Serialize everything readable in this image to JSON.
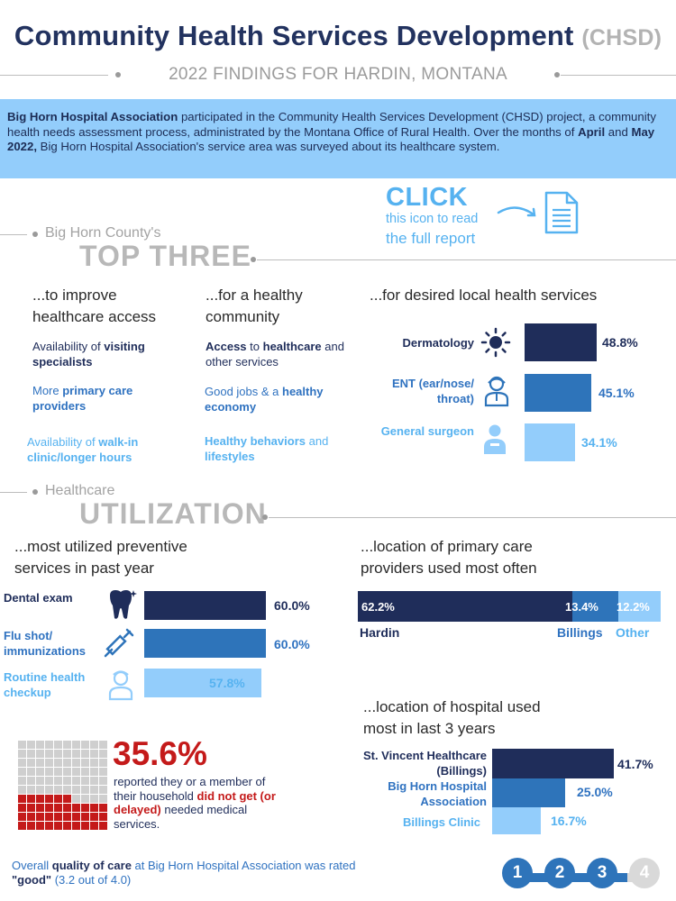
{
  "header": {
    "title": "Community Health Services Development",
    "title_abbr": "(CHSD)",
    "subtitle": "2022 FINDINGS FOR HARDIN, MONTANA"
  },
  "intro": {
    "org": "Big Horn Hospital Association",
    "text_1": " participated in the Community Health Services Development (CHSD) project, a community health needs assessment process, administrated by the Montana Office of Rural Health. Over the months of ",
    "month_1": "April",
    "text_2": " and ",
    "month_2": "May 2022,",
    "text_3": " Big Horn Hospital Association's service area was surveyed about its healthcare system."
  },
  "click": {
    "title": "CLICK",
    "line_1": "this icon to read",
    "line_2": "the full report",
    "icon": "document-icon"
  },
  "top_three": {
    "kicker": "Big Horn County's",
    "heading": "TOP THREE",
    "access": {
      "heading_1": "...to improve",
      "heading_2": "healthcare access",
      "items": [
        {
          "pre": "Availability of ",
          "bold": "visiting specialists",
          "post": ""
        },
        {
          "pre": "More ",
          "bold": "primary care providers",
          "post": ""
        },
        {
          "pre": "Availability of ",
          "bold": "walk-in clinic/longer hours",
          "post": ""
        }
      ]
    },
    "community": {
      "heading_1": "...for a healthy",
      "heading_2": "community",
      "items": [
        {
          "pre": "",
          "bold1": "Access",
          "mid": " to ",
          "bold2": "healthcare",
          "post": " and other services"
        },
        {
          "pre": "Good jobs & a ",
          "bold1": "healthy economy",
          "mid": "",
          "bold2": "",
          "post": ""
        },
        {
          "pre": "",
          "bold1": "Healthy behaviors",
          "mid": " and ",
          "bold2": "lifestyles",
          "post": ""
        }
      ]
    },
    "services": {
      "heading": "...for desired local health services",
      "bars": [
        {
          "label": "Dermatology",
          "value": 48.8,
          "display": "48.8%",
          "icon": "sun-icon"
        },
        {
          "label": "ENT (ear/nose/ throat)",
          "value": 45.1,
          "display": "45.1%",
          "icon": "doctor-icon"
        },
        {
          "label": "General surgeon",
          "value": 34.1,
          "display": "34.1%",
          "icon": "surgeon-icon"
        }
      ]
    }
  },
  "utilization": {
    "kicker": "Healthcare",
    "heading": "UTILIZATION",
    "preventive": {
      "heading_1": "...most utilized preventive",
      "heading_2": "services in past year",
      "bars": [
        {
          "label": "Dental exam",
          "value": 60.0,
          "display": "60.0%",
          "icon": "tooth-icon"
        },
        {
          "label": "Flu shot/ immunizations",
          "value": 60.0,
          "display": "60.0%",
          "icon": "syringe-icon"
        },
        {
          "label": "Routine health checkup",
          "value": 57.8,
          "display": "57.8%",
          "icon": "nurse-icon"
        }
      ]
    },
    "primary_care": {
      "heading_1": "...location of primary care",
      "heading_2": "providers used most often",
      "segments": [
        {
          "label": "Hardin",
          "value": 62.2,
          "display": "62.2%"
        },
        {
          "label": "Billings",
          "value": 13.4,
          "display": "13.4%"
        },
        {
          "label": "Other",
          "value": 12.2,
          "display": "12.2%"
        }
      ]
    },
    "hospital": {
      "heading_1": "...location of hospital used",
      "heading_2": "most in last 3 years",
      "bars": [
        {
          "label": "St. Vincent Healthcare (Billings)",
          "value": 41.7,
          "display": "41.7%"
        },
        {
          "label": "Big Horn Hospital Association",
          "value": 25.0,
          "display": "25.0%"
        },
        {
          "label": "Billings Clinic",
          "value": 16.7,
          "display": "16.7%"
        }
      ]
    },
    "delayed": {
      "value": "35.6%",
      "fraction": 0.356,
      "text_1": "reported they or a member of their household ",
      "emph": "did not get (or delayed)",
      "text_2": " needed medical services."
    },
    "quality": {
      "text_1": "Overall ",
      "bold_1": "quality of care",
      "text_2": " at Big Horn Hospital Association was rated ",
      "bold_2": "\"good\"",
      "text_3": " (3.2 out of 4.0)"
    }
  },
  "pagination": {
    "pages": [
      "1",
      "2",
      "3",
      "4"
    ]
  },
  "colors": {
    "navy": "#1f2d5a",
    "mid_blue": "#2e74ba",
    "light_blue": "#93cdfb",
    "accent_red": "#c41a1a"
  }
}
